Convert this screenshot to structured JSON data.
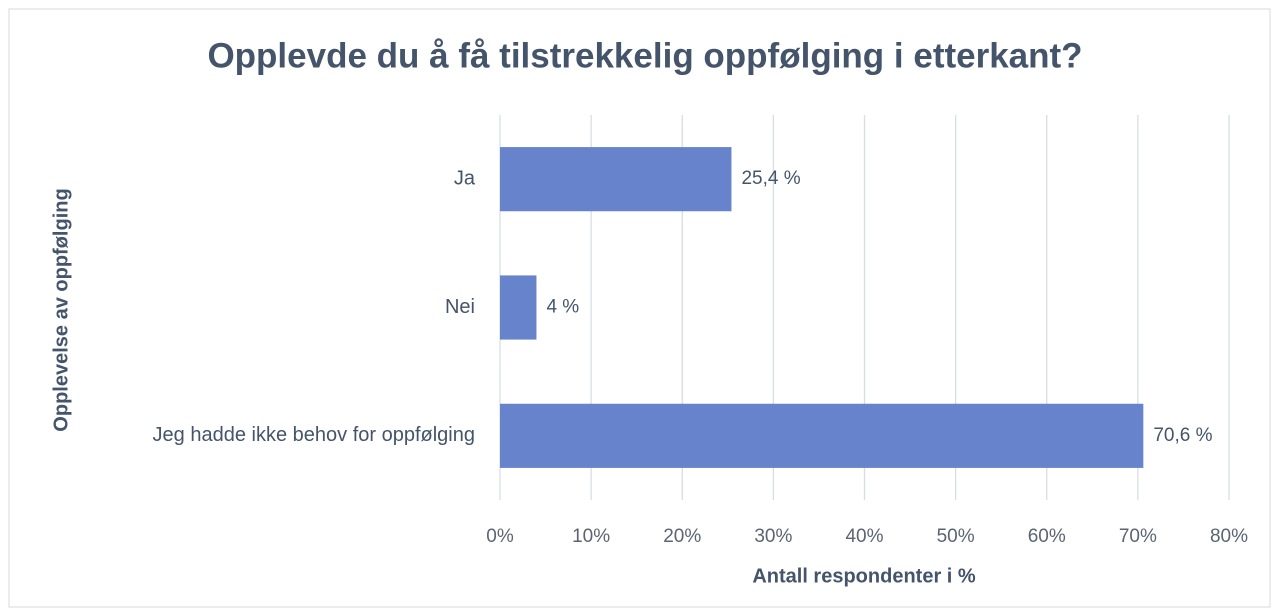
{
  "chart_data": {
    "type": "bar",
    "orientation": "horizontal",
    "title": "Opplevde du å få tilstrekkelig oppfølging i etterkant?",
    "x_label": "Antall respondenter i %",
    "y_label": "Opplevelse av oppfølging",
    "categories": [
      "Ja",
      "Nei",
      "Jeg hadde ikke behov for oppfølging"
    ],
    "values": [
      25.4,
      4,
      70.6
    ],
    "value_labels": [
      "25,4 %",
      "4 %",
      "70,6 %"
    ],
    "color": "#6683cc",
    "xlim": [
      0,
      80
    ],
    "xticks": [
      {
        "value": 0,
        "label": "0%"
      },
      {
        "value": 10,
        "label": "10%"
      },
      {
        "value": 20,
        "label": "20%"
      },
      {
        "value": 30,
        "label": "30%"
      },
      {
        "value": 40,
        "label": "40%"
      },
      {
        "value": 50,
        "label": "50%"
      },
      {
        "value": 60,
        "label": "60%"
      },
      {
        "value": 70,
        "label": "70%"
      },
      {
        "value": 80,
        "label": "80%"
      }
    ],
    "grid": true
  }
}
